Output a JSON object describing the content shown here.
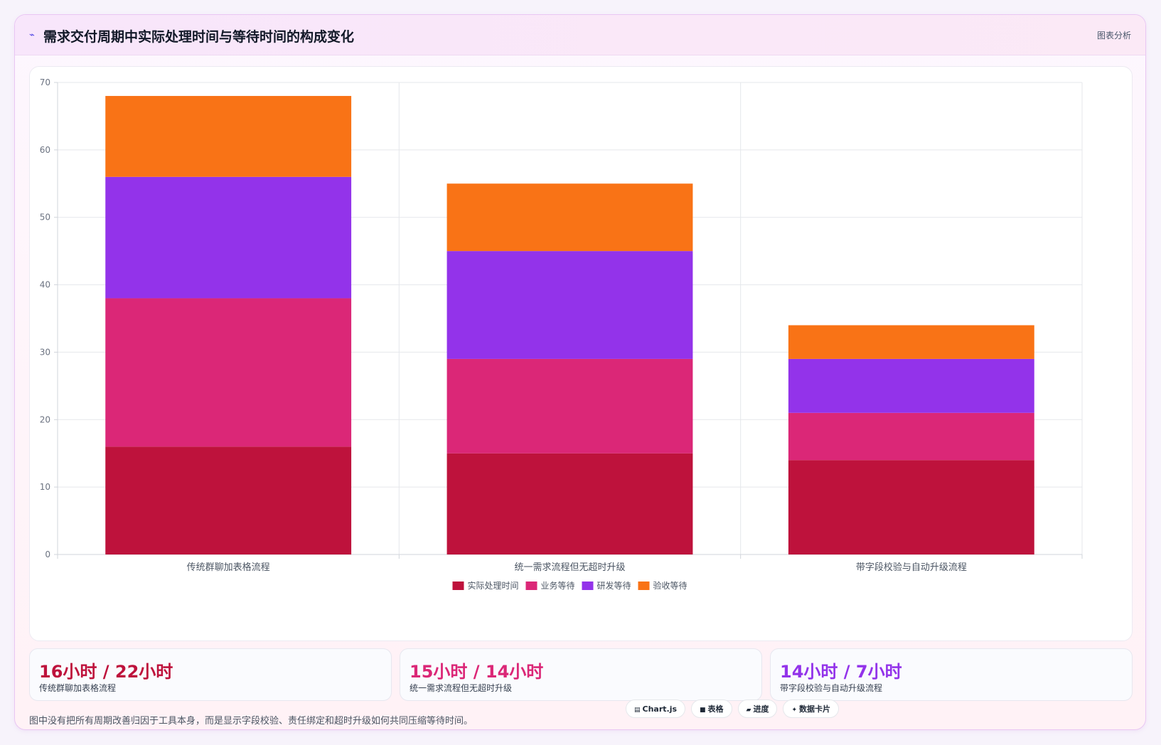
{
  "header": {
    "icon": "zigzag-icon",
    "title": "需求交付周期中实际处理时间与等待时间的构成变化",
    "tag": "图表分析"
  },
  "chart_data": {
    "type": "bar",
    "stacked": true,
    "categories": [
      "传统群聊加表格流程",
      "统一需求流程但无超时升级",
      "带字段校验与自动升级流程"
    ],
    "series": [
      {
        "name": "实际处理时间",
        "color": "#be123c",
        "values": [
          16,
          15,
          14
        ]
      },
      {
        "name": "业务等待",
        "color": "#db2777",
        "values": [
          22,
          14,
          7
        ]
      },
      {
        "name": "研发等待",
        "color": "#9333ea",
        "values": [
          18,
          16,
          8
        ]
      },
      {
        "name": "验收等待",
        "color": "#f97316",
        "values": [
          12,
          10,
          5
        ]
      }
    ],
    "ylim": [
      0,
      70
    ],
    "yticks": [
      0,
      10,
      20,
      30,
      40,
      50,
      60,
      70
    ],
    "grid": true,
    "legend": "bottom"
  },
  "stats": [
    {
      "value": "16小时 / 22小时",
      "label": "传统群聊加表格流程",
      "color": "#be123c"
    },
    {
      "value": "15小时 / 14小时",
      "label": "统一需求流程但无超时升级",
      "color": "#db2777"
    },
    {
      "value": "14小时 / 7小时",
      "label": "带字段校验与自动升级流程",
      "color": "#9333ea"
    }
  ],
  "footnote": "图中没有把所有周期改善归因于工具本身，而是显示字段校验、责任绑定和超时升级如何共同压缩等待时间。",
  "badges": [
    {
      "icon": "chart-icon",
      "label": "Chart.js"
    },
    {
      "icon": "table-icon",
      "label": "表格"
    },
    {
      "icon": "progress-icon",
      "label": "进度"
    },
    {
      "icon": "sparkle-icon",
      "label": "数据卡片"
    }
  ]
}
